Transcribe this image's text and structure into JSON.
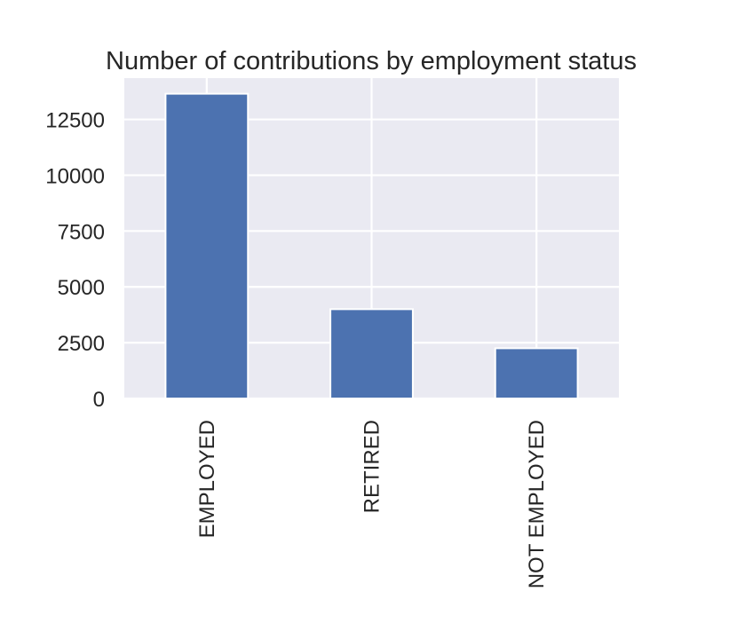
{
  "chart_data": {
    "type": "bar",
    "title": "Number of contributions by employment status",
    "xlabel": "",
    "ylabel": "",
    "categories": [
      "EMPLOYED",
      "RETIRED",
      "NOT EMPLOYED"
    ],
    "values": [
      13650,
      4000,
      2250
    ],
    "ylim": [
      0,
      14350
    ],
    "y_ticks": [
      0,
      2500,
      5000,
      7500,
      10000,
      12500
    ],
    "y_tick_labels": [
      "0",
      "2500",
      "5000",
      "7500",
      "10000",
      "12500"
    ],
    "x_tick_rotation": "vertical",
    "grid": true,
    "legend": "none",
    "colors": {
      "bar": "#4c72b0",
      "plot_background": "#eaeaf2",
      "grid": "#ffffff",
      "text": "#262626"
    }
  }
}
